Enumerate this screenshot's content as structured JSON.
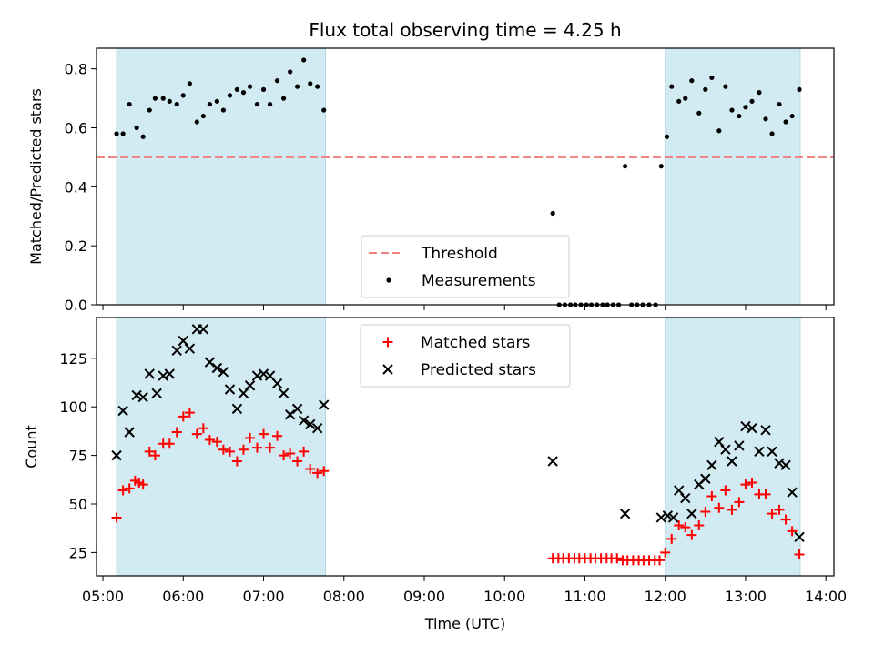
{
  "chart_data": {
    "type": "scatter",
    "title": "Flux total observing time = 4.25 h",
    "xlabel": "Time (UTC)",
    "x_unit": "hours UTC",
    "xlim": [
      4.92,
      14.1
    ],
    "x_ticks": [
      {
        "value": 5,
        "label": "05:00"
      },
      {
        "value": 6,
        "label": "06:00"
      },
      {
        "value": 7,
        "label": "07:00"
      },
      {
        "value": 8,
        "label": "08:00"
      },
      {
        "value": 9,
        "label": "09:00"
      },
      {
        "value": 10,
        "label": "10:00"
      },
      {
        "value": 11,
        "label": "11:00"
      },
      {
        "value": 12,
        "label": "12:00"
      },
      {
        "value": 13,
        "label": "13:00"
      },
      {
        "value": 14,
        "label": "14:00"
      }
    ],
    "observing_windows": [
      [
        5.17,
        7.77
      ],
      [
        12.0,
        13.68
      ]
    ],
    "window_color": "#add8e6",
    "panels": [
      {
        "ylabel": "Matched/Predicted stars",
        "ylim": [
          0,
          0.87
        ],
        "y_ticks": [
          {
            "value": 0.0,
            "label": "0.0"
          },
          {
            "value": 0.2,
            "label": "0.2"
          },
          {
            "value": 0.4,
            "label": "0.4"
          },
          {
            "value": 0.6,
            "label": "0.6"
          },
          {
            "value": 0.8,
            "label": "0.8"
          }
        ],
        "threshold": {
          "name": "Threshold",
          "value": 0.5,
          "color": "#f08080"
        },
        "legend_location": "lower-center",
        "series": [
          {
            "name": "Measurements",
            "marker": "dot",
            "color": "#000000",
            "points": [
              [
                5.17,
                0.58
              ],
              [
                5.25,
                0.58
              ],
              [
                5.33,
                0.68
              ],
              [
                5.42,
                0.6
              ],
              [
                5.5,
                0.57
              ],
              [
                5.58,
                0.66
              ],
              [
                5.65,
                0.7
              ],
              [
                5.75,
                0.7
              ],
              [
                5.83,
                0.69
              ],
              [
                5.92,
                0.68
              ],
              [
                6.0,
                0.71
              ],
              [
                6.08,
                0.75
              ],
              [
                6.17,
                0.62
              ],
              [
                6.25,
                0.64
              ],
              [
                6.33,
                0.68
              ],
              [
                6.42,
                0.69
              ],
              [
                6.5,
                0.66
              ],
              [
                6.58,
                0.71
              ],
              [
                6.67,
                0.73
              ],
              [
                6.75,
                0.72
              ],
              [
                6.83,
                0.74
              ],
              [
                6.92,
                0.68
              ],
              [
                7.0,
                0.73
              ],
              [
                7.08,
                0.68
              ],
              [
                7.17,
                0.76
              ],
              [
                7.25,
                0.7
              ],
              [
                7.33,
                0.79
              ],
              [
                7.42,
                0.74
              ],
              [
                7.5,
                0.83
              ],
              [
                7.58,
                0.75
              ],
              [
                7.67,
                0.74
              ],
              [
                7.75,
                0.66
              ],
              [
                10.6,
                0.31
              ],
              [
                10.68,
                0.0
              ],
              [
                10.75,
                0.0
              ],
              [
                10.82,
                0.0
              ],
              [
                10.88,
                0.0
              ],
              [
                10.95,
                0.0
              ],
              [
                11.02,
                0.0
              ],
              [
                11.08,
                0.0
              ],
              [
                11.15,
                0.0
              ],
              [
                11.22,
                0.0
              ],
              [
                11.28,
                0.0
              ],
              [
                11.35,
                0.0
              ],
              [
                11.42,
                0.0
              ],
              [
                11.5,
                0.47
              ],
              [
                11.58,
                0.0
              ],
              [
                11.65,
                0.0
              ],
              [
                11.72,
                0.0
              ],
              [
                11.8,
                0.0
              ],
              [
                11.88,
                0.0
              ],
              [
                11.95,
                0.47
              ],
              [
                12.02,
                0.57
              ],
              [
                12.08,
                0.74
              ],
              [
                12.17,
                0.69
              ],
              [
                12.25,
                0.7
              ],
              [
                12.33,
                0.76
              ],
              [
                12.42,
                0.65
              ],
              [
                12.5,
                0.73
              ],
              [
                12.58,
                0.77
              ],
              [
                12.67,
                0.59
              ],
              [
                12.75,
                0.74
              ],
              [
                12.83,
                0.66
              ],
              [
                12.92,
                0.64
              ],
              [
                13.0,
                0.67
              ],
              [
                13.08,
                0.69
              ],
              [
                13.17,
                0.72
              ],
              [
                13.25,
                0.63
              ],
              [
                13.33,
                0.58
              ],
              [
                13.42,
                0.68
              ],
              [
                13.5,
                0.62
              ],
              [
                13.58,
                0.64
              ],
              [
                13.67,
                0.73
              ]
            ]
          }
        ]
      },
      {
        "ylabel": "Count",
        "ylim": [
          13,
          146
        ],
        "y_ticks": [
          {
            "value": 25,
            "label": "25"
          },
          {
            "value": 50,
            "label": "50"
          },
          {
            "value": 75,
            "label": "75"
          },
          {
            "value": 100,
            "label": "100"
          },
          {
            "value": 125,
            "label": "125"
          }
        ],
        "legend_location": "upper-center",
        "series": [
          {
            "name": "Matched stars",
            "marker": "plus",
            "color": "#ff0000",
            "points": [
              [
                5.17,
                43
              ],
              [
                5.25,
                57
              ],
              [
                5.33,
                58
              ],
              [
                5.4,
                62
              ],
              [
                5.45,
                61
              ],
              [
                5.5,
                60
              ],
              [
                5.58,
                77
              ],
              [
                5.65,
                75
              ],
              [
                5.75,
                81
              ],
              [
                5.83,
                81
              ],
              [
                5.92,
                87
              ],
              [
                6.0,
                95
              ],
              [
                6.08,
                97
              ],
              [
                6.17,
                86
              ],
              [
                6.25,
                89
              ],
              [
                6.33,
                83
              ],
              [
                6.42,
                82
              ],
              [
                6.5,
                78
              ],
              [
                6.58,
                77
              ],
              [
                6.67,
                72
              ],
              [
                6.75,
                78
              ],
              [
                6.83,
                84
              ],
              [
                6.92,
                79
              ],
              [
                7.0,
                86
              ],
              [
                7.08,
                79
              ],
              [
                7.17,
                85
              ],
              [
                7.25,
                75
              ],
              [
                7.33,
                76
              ],
              [
                7.42,
                72
              ],
              [
                7.5,
                77
              ],
              [
                7.58,
                68
              ],
              [
                7.67,
                66
              ],
              [
                7.75,
                67
              ],
              [
                10.6,
                22
              ],
              [
                10.67,
                22
              ],
              [
                10.73,
                22
              ],
              [
                10.8,
                22
              ],
              [
                10.87,
                22
              ],
              [
                10.93,
                22
              ],
              [
                11.0,
                22
              ],
              [
                11.07,
                22
              ],
              [
                11.13,
                22
              ],
              [
                11.2,
                22
              ],
              [
                11.27,
                22
              ],
              [
                11.33,
                22
              ],
              [
                11.4,
                22
              ],
              [
                11.47,
                21
              ],
              [
                11.53,
                21
              ],
              [
                11.6,
                21
              ],
              [
                11.67,
                21
              ],
              [
                11.73,
                21
              ],
              [
                11.8,
                21
              ],
              [
                11.87,
                21
              ],
              [
                11.93,
                21
              ],
              [
                12.0,
                25
              ],
              [
                12.08,
                32
              ],
              [
                12.17,
                39
              ],
              [
                12.25,
                38
              ],
              [
                12.33,
                34
              ],
              [
                12.42,
                39
              ],
              [
                12.5,
                46
              ],
              [
                12.58,
                54
              ],
              [
                12.67,
                48
              ],
              [
                12.75,
                57
              ],
              [
                12.83,
                47
              ],
              [
                12.92,
                51
              ],
              [
                13.0,
                60
              ],
              [
                13.08,
                61
              ],
              [
                13.17,
                55
              ],
              [
                13.25,
                55
              ],
              [
                13.33,
                45
              ],
              [
                13.42,
                47
              ],
              [
                13.5,
                42
              ],
              [
                13.58,
                36
              ],
              [
                13.67,
                24
              ]
            ]
          },
          {
            "name": "Predicted stars",
            "marker": "x",
            "color": "#000000",
            "points": [
              [
                5.17,
                75
              ],
              [
                5.25,
                98
              ],
              [
                5.33,
                87
              ],
              [
                5.42,
                106
              ],
              [
                5.5,
                105
              ],
              [
                5.58,
                117
              ],
              [
                5.67,
                107
              ],
              [
                5.75,
                116
              ],
              [
                5.83,
                117
              ],
              [
                5.92,
                129
              ],
              [
                6.0,
                134
              ],
              [
                6.08,
                130
              ],
              [
                6.17,
                140
              ],
              [
                6.25,
                140
              ],
              [
                6.33,
                123
              ],
              [
                6.42,
                120
              ],
              [
                6.5,
                118
              ],
              [
                6.58,
                109
              ],
              [
                6.67,
                99
              ],
              [
                6.75,
                107
              ],
              [
                6.83,
                111
              ],
              [
                6.92,
                116
              ],
              [
                7.0,
                117
              ],
              [
                7.08,
                116
              ],
              [
                7.17,
                112
              ],
              [
                7.25,
                107
              ],
              [
                7.33,
                96
              ],
              [
                7.42,
                99
              ],
              [
                7.5,
                93
              ],
              [
                7.58,
                91
              ],
              [
                7.67,
                89
              ],
              [
                7.75,
                101
              ],
              [
                10.6,
                72
              ],
              [
                11.5,
                45
              ],
              [
                11.95,
                43
              ],
              [
                12.03,
                44
              ],
              [
                12.1,
                43
              ],
              [
                12.17,
                57
              ],
              [
                12.25,
                53
              ],
              [
                12.33,
                45
              ],
              [
                12.42,
                60
              ],
              [
                12.5,
                63
              ],
              [
                12.58,
                70
              ],
              [
                12.67,
                82
              ],
              [
                12.75,
                78
              ],
              [
                12.83,
                72
              ],
              [
                12.92,
                80
              ],
              [
                13.0,
                90
              ],
              [
                13.08,
                89
              ],
              [
                13.17,
                77
              ],
              [
                13.25,
                88
              ],
              [
                13.33,
                77
              ],
              [
                13.42,
                71
              ],
              [
                13.5,
                70
              ],
              [
                13.58,
                56
              ],
              [
                13.67,
                33
              ]
            ]
          }
        ]
      }
    ]
  }
}
